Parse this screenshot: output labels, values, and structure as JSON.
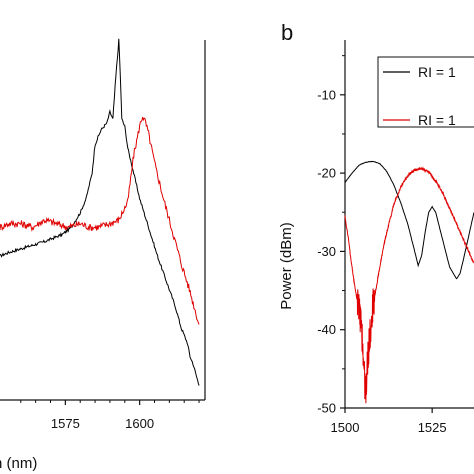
{
  "chart_data": [
    {
      "type": "line",
      "panel": "a",
      "xlabel": "n (nm)",
      "ylabel": "",
      "xlim": [
        1553,
        1622
      ],
      "ylim": [
        0,
        1
      ],
      "x_ticks": [
        1575,
        1600
      ],
      "x_tick_labels": [
        "1575",
        "1600"
      ],
      "series": [
        {
          "color": "#000000",
          "x": [
            1553,
            1556,
            1560,
            1564,
            1568,
            1571,
            1574,
            1577,
            1580,
            1582,
            1584,
            1585,
            1587,
            1589,
            1590,
            1591,
            1592,
            1593,
            1593.5,
            1594,
            1595,
            1596,
            1598,
            1600,
            1603,
            1606,
            1609,
            1612,
            1614,
            1616,
            1617,
            1618,
            1619,
            1620
          ],
          "y": [
            0.4,
            0.41,
            0.42,
            0.43,
            0.44,
            0.45,
            0.46,
            0.48,
            0.52,
            0.56,
            0.63,
            0.71,
            0.75,
            0.77,
            0.8,
            0.78,
            0.9,
            1.0,
            0.9,
            0.78,
            0.76,
            0.7,
            0.63,
            0.56,
            0.48,
            0.4,
            0.33,
            0.26,
            0.2,
            0.16,
            0.12,
            0.1,
            0.07,
            0.04
          ]
        },
        {
          "color": "#e00000",
          "x": [
            1553,
            1556,
            1560,
            1564,
            1568,
            1572,
            1576,
            1580,
            1583,
            1586,
            1590,
            1593,
            1596,
            1598,
            1600,
            1601,
            1602,
            1603,
            1605,
            1608,
            1611,
            1614,
            1617,
            1620
          ],
          "y": [
            0.48,
            0.49,
            0.49,
            0.48,
            0.5,
            0.49,
            0.48,
            0.49,
            0.48,
            0.48,
            0.49,
            0.5,
            0.55,
            0.68,
            0.76,
            0.79,
            0.77,
            0.74,
            0.66,
            0.56,
            0.47,
            0.38,
            0.3,
            0.21
          ]
        }
      ]
    },
    {
      "type": "line",
      "panel": "b",
      "xlabel": "",
      "ylabel": "Power (dBm)",
      "xlim": [
        1500,
        1537
      ],
      "ylim": [
        -50,
        -3
      ],
      "x_ticks": [
        1500,
        1525
      ],
      "x_tick_labels": [
        "1500",
        "1525"
      ],
      "y_ticks": [
        -50,
        -40,
        -30,
        -20,
        -10
      ],
      "y_tick_labels": [
        "-50",
        "-40",
        "-30",
        "-20",
        "-10"
      ],
      "series": [
        {
          "name": "RI = 1",
          "color": "#000000",
          "x": [
            1500,
            1502,
            1504,
            1506,
            1508,
            1510,
            1512,
            1514,
            1516,
            1518,
            1520,
            1521,
            1522,
            1523,
            1524,
            1525,
            1526,
            1528,
            1530,
            1532,
            1533,
            1534,
            1535,
            1536,
            1537
          ],
          "y": [
            -21.2,
            -20.0,
            -19.0,
            -18.6,
            -18.5,
            -18.8,
            -19.8,
            -21.5,
            -23.8,
            -26.5,
            -30.0,
            -31.8,
            -30.5,
            -27.5,
            -25.0,
            -24.3,
            -25.0,
            -28.5,
            -32.0,
            -33.5,
            -32.8,
            -31.0,
            -29.0,
            -27.0,
            -25.0
          ]
        },
        {
          "name": "RI = 1",
          "color": "#e00000",
          "x": [
            1500,
            1501,
            1502,
            1503,
            1504,
            1505,
            1505.5,
            1506,
            1506.5,
            1507,
            1508,
            1509,
            1510,
            1511,
            1512,
            1514,
            1516,
            1518,
            1520,
            1522,
            1524,
            1526,
            1528,
            1530,
            1532,
            1534,
            1536,
            1537
          ],
          "y": [
            -25.5,
            -28.5,
            -32.0,
            -35.0,
            -37.5,
            -41.0,
            -46.0,
            -48.0,
            -44.0,
            -41.0,
            -37.0,
            -34.5,
            -32.0,
            -29.5,
            -27.5,
            -24.0,
            -21.8,
            -20.3,
            -19.6,
            -19.4,
            -19.8,
            -21.0,
            -22.5,
            -24.5,
            -26.5,
            -28.5,
            -30.5,
            -31.5
          ]
        }
      ]
    }
  ],
  "labels": {
    "panel_b_letter": "b",
    "panel_a_xlabel": "n (nm)",
    "panel_b_ylabel": "Power (dBm)",
    "legend": [
      "RI = 1",
      "RI = 1"
    ]
  },
  "colors": {
    "black_series": "#000000",
    "red_series": "#e00000"
  }
}
